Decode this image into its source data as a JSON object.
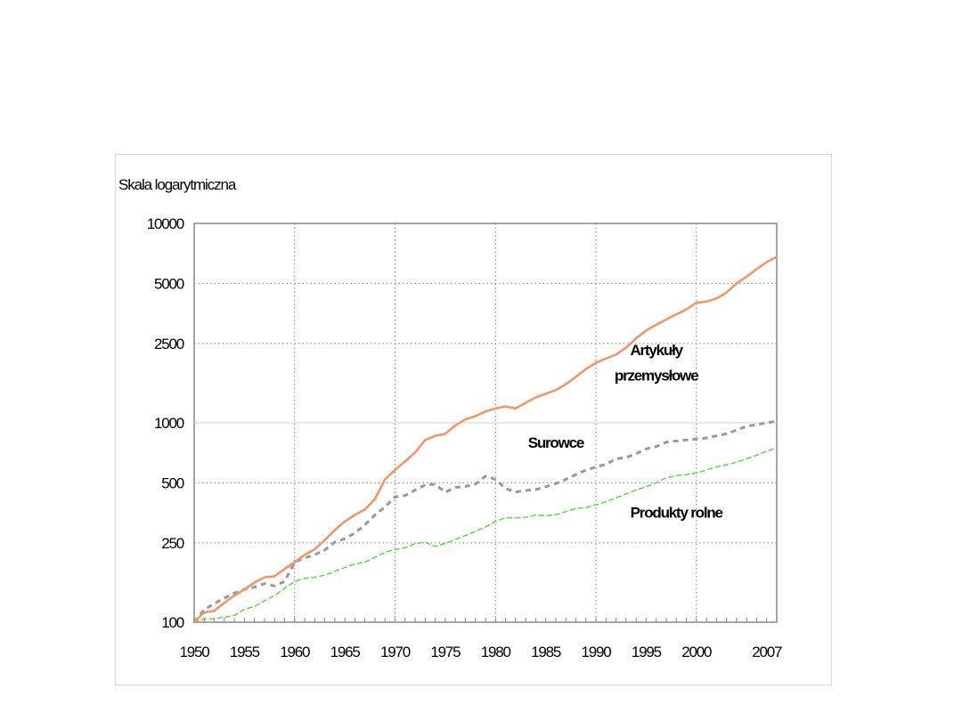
{
  "chart_data": {
    "type": "line",
    "scale_note": "Skala logarytmiczna",
    "y_scale": "log",
    "ylim": [
      100,
      10000
    ],
    "y_ticks": [
      100,
      250,
      500,
      1000,
      2500,
      5000,
      10000
    ],
    "y_tick_labels": [
      "100",
      "250",
      "500",
      "1000",
      "2500",
      "5000",
      "10000"
    ],
    "xlim": [
      1950,
      2008
    ],
    "x_ticks": [
      1950,
      1955,
      1960,
      1965,
      1970,
      1975,
      1980,
      1985,
      1990,
      1995,
      2000,
      2007
    ],
    "x_tick_labels": [
      "1950",
      "1955",
      "1960",
      "1965",
      "1970",
      "1975",
      "1980",
      "1985",
      "1990",
      "1995",
      "2000",
      "2007"
    ],
    "grid": true,
    "legend": "none",
    "x": [
      1950,
      1951,
      1952,
      1953,
      1954,
      1955,
      1956,
      1957,
      1958,
      1959,
      1960,
      1961,
      1962,
      1963,
      1964,
      1965,
      1966,
      1967,
      1968,
      1969,
      1970,
      1971,
      1972,
      1973,
      1974,
      1975,
      1976,
      1977,
      1978,
      1979,
      1980,
      1981,
      1982,
      1983,
      1984,
      1985,
      1986,
      1987,
      1988,
      1989,
      1990,
      1991,
      1992,
      1993,
      1994,
      1995,
      1996,
      1997,
      1998,
      1999,
      2000,
      2001,
      2002,
      2003,
      2004,
      2005,
      2006,
      2007,
      2008
    ],
    "series": [
      {
        "name": "Artykuły przemysłowe",
        "color": "#f4956a",
        "dash": "solid",
        "values": [
          100,
          112,
          114,
          125,
          136,
          146,
          158,
          168,
          170,
          185,
          200,
          218,
          232,
          258,
          290,
          320,
          345,
          368,
          415,
          520,
          580,
          640,
          710,
          820,
          860,
          880,
          970,
          1040,
          1080,
          1140,
          1180,
          1210,
          1180,
          1260,
          1340,
          1400,
          1460,
          1560,
          1700,
          1860,
          2000,
          2100,
          2200,
          2380,
          2650,
          2900,
          3100,
          3300,
          3500,
          3700,
          4000,
          4050,
          4200,
          4500,
          5000,
          5400,
          5900,
          6400,
          6800
        ]
      },
      {
        "name": "Surowce",
        "color": "#999999",
        "dash": "dashed",
        "values": [
          100,
          116,
          124,
          132,
          140,
          146,
          150,
          156,
          152,
          160,
          200,
          210,
          218,
          230,
          252,
          262,
          280,
          308,
          345,
          378,
          425,
          432,
          460,
          488,
          492,
          448,
          474,
          480,
          492,
          540,
          520,
          468,
          450,
          458,
          462,
          478,
          496,
          520,
          550,
          580,
          600,
          620,
          660,
          670,
          700,
          740,
          760,
          800,
          810,
          820,
          830,
          840,
          860,
          880,
          920,
          960,
          980,
          1000,
          1020
        ]
      },
      {
        "name": "Produkty rolne",
        "color": "#55dd44",
        "dash": "dashed",
        "values": [
          100,
          104,
          104,
          106,
          108,
          116,
          120,
          128,
          136,
          148,
          160,
          166,
          168,
          172,
          180,
          188,
          196,
          200,
          212,
          224,
          232,
          236,
          248,
          252,
          240,
          248,
          260,
          272,
          286,
          300,
          320,
          334,
          334,
          336,
          344,
          342,
          346,
          358,
          372,
          376,
          388,
          402,
          420,
          440,
          460,
          478,
          500,
          530,
          544,
          550,
          560,
          580,
          600,
          616,
          634,
          660,
          688,
          720,
          750
        ]
      }
    ],
    "annotations": [
      {
        "text": "Artykuły",
        "x": 1996,
        "y": 2180
      },
      {
        "text": "przemysłowe",
        "x": 1996,
        "y": 1630
      },
      {
        "text": "Surowce",
        "x": 1986,
        "y": 750
      },
      {
        "text": "Produkty rolne",
        "x": 1998,
        "y": 335
      }
    ]
  }
}
